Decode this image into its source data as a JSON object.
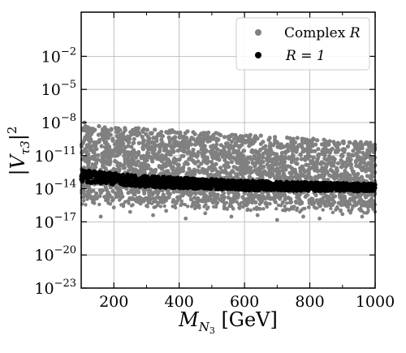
{
  "chart_data": {
    "type": "scatter",
    "title": "",
    "xlabel": "M_{N_3} [GeV]",
    "ylabel": "|V_{τ3}|^2",
    "xlim": [
      100,
      1000
    ],
    "ylim": [
      1e-23,
      100.0
    ],
    "yscale": "log",
    "grid": true,
    "legend_position": "top-right",
    "x_ticks": [
      200,
      400,
      600,
      800,
      1000
    ],
    "x_tick_labels": [
      "200",
      "400",
      "600",
      "800",
      "1000"
    ],
    "y_ticks": [
      -23,
      -20,
      -17,
      -14,
      -11,
      -8,
      -5,
      -2
    ],
    "y_tick_labels": [
      "10^{-23}",
      "10^{-20}",
      "10^{-17}",
      "10^{-14}",
      "10^{-11}",
      "10^{-8}",
      "10^{-5}",
      "10^{-2}"
    ],
    "series": [
      {
        "name": "Complex R",
        "color": "#808080",
        "x_range": [
          100,
          1000
        ],
        "log10_upper_edge": [
          [
            100,
            -8.2
          ],
          [
            1000,
            -9.8
          ]
        ],
        "log10_lower_edge": [
          [
            100,
            -15.5
          ],
          [
            1000,
            -16.3
          ]
        ],
        "sparse_points": [
          {
            "x": 110,
            "y": 1e-08
          },
          {
            "x": 140,
            "y": 5e-16
          },
          {
            "x": 160,
            "y": 3e-17
          },
          {
            "x": 200,
            "y": 2e-16
          },
          {
            "x": 250,
            "y": 8e-17
          },
          {
            "x": 320,
            "y": 4e-17
          },
          {
            "x": 360,
            "y": 1e-16
          },
          {
            "x": 420,
            "y": 2e-17
          },
          {
            "x": 480,
            "y": 6e-17
          },
          {
            "x": 560,
            "y": 3e-17
          },
          {
            "x": 640,
            "y": 4e-17
          },
          {
            "x": 700,
            "y": 1.5e-17
          },
          {
            "x": 780,
            "y": 3e-17
          },
          {
            "x": 830,
            "y": 2e-17
          },
          {
            "x": 900,
            "y": 5e-17
          },
          {
            "x": 960,
            "y": 3e-17
          }
        ]
      },
      {
        "name": "R = 1",
        "color": "#000000",
        "x_range": [
          100,
          1000
        ],
        "log10_center": [
          [
            100,
            -12.85
          ],
          [
            300,
            -13.35
          ],
          [
            600,
            -13.7
          ],
          [
            1000,
            -13.9
          ]
        ],
        "log10_halfwidth": [
          [
            100,
            0.55
          ],
          [
            1000,
            0.35
          ]
        ]
      }
    ]
  },
  "legend": {
    "entries": [
      {
        "label": "Complex ",
        "label_italic": "R",
        "color": "#808080"
      },
      {
        "label": "R = 1",
        "color": "#000000"
      }
    ]
  }
}
